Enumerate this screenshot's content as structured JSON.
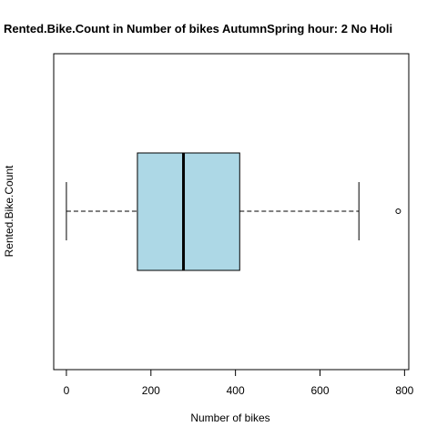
{
  "chart_data": {
    "type": "boxplot",
    "orientation": "horizontal",
    "title": "Rented.Bike.Count in Number of bikes AutumnSpring hour: 2 No Holi",
    "xlabel": "Number of bikes",
    "ylabel": "Rented.Bike.Count",
    "xlim": [
      -30,
      810
    ],
    "xticks": [
      0,
      200,
      400,
      600,
      800
    ],
    "grid": false,
    "box": {
      "whisker_low": 0,
      "q1": 168,
      "median": 277,
      "q3": 410,
      "whisker_high": 692,
      "outliers": [
        785
      ]
    },
    "colors": {
      "box_fill": "#add8e6",
      "stroke": "#000000",
      "background": "#ffffff"
    }
  }
}
